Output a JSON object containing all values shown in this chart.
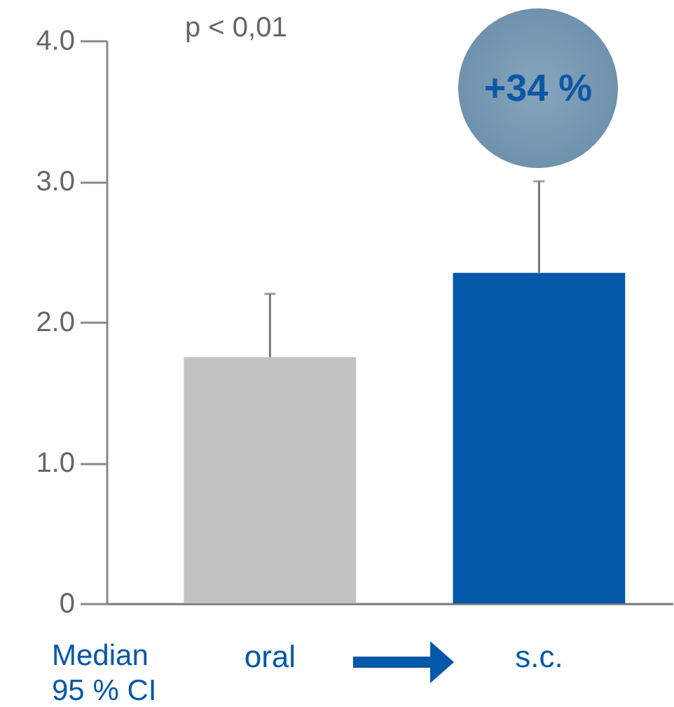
{
  "chart_data": {
    "type": "bar",
    "categories": [
      "oral",
      "s.c."
    ],
    "values": [
      1.75,
      2.35
    ],
    "colors": [
      "#c2c2c2",
      "#0458a8"
    ],
    "errors": [
      [
        1.75,
        2.2
      ],
      [
        2.35,
        3.0
      ]
    ],
    "ylim": [
      0,
      4
    ],
    "yticks": [
      0,
      {
        "value": 1,
        "label": "1.0"
      },
      {
        "value": 2,
        "label": "2.0"
      },
      {
        "value": 3,
        "label": "3.0"
      },
      {
        "value": 4,
        "label": "4.0"
      }
    ],
    "annotations": [
      "p < 0,01",
      "+34 %",
      "Median\n95 % CI"
    ]
  }
}
